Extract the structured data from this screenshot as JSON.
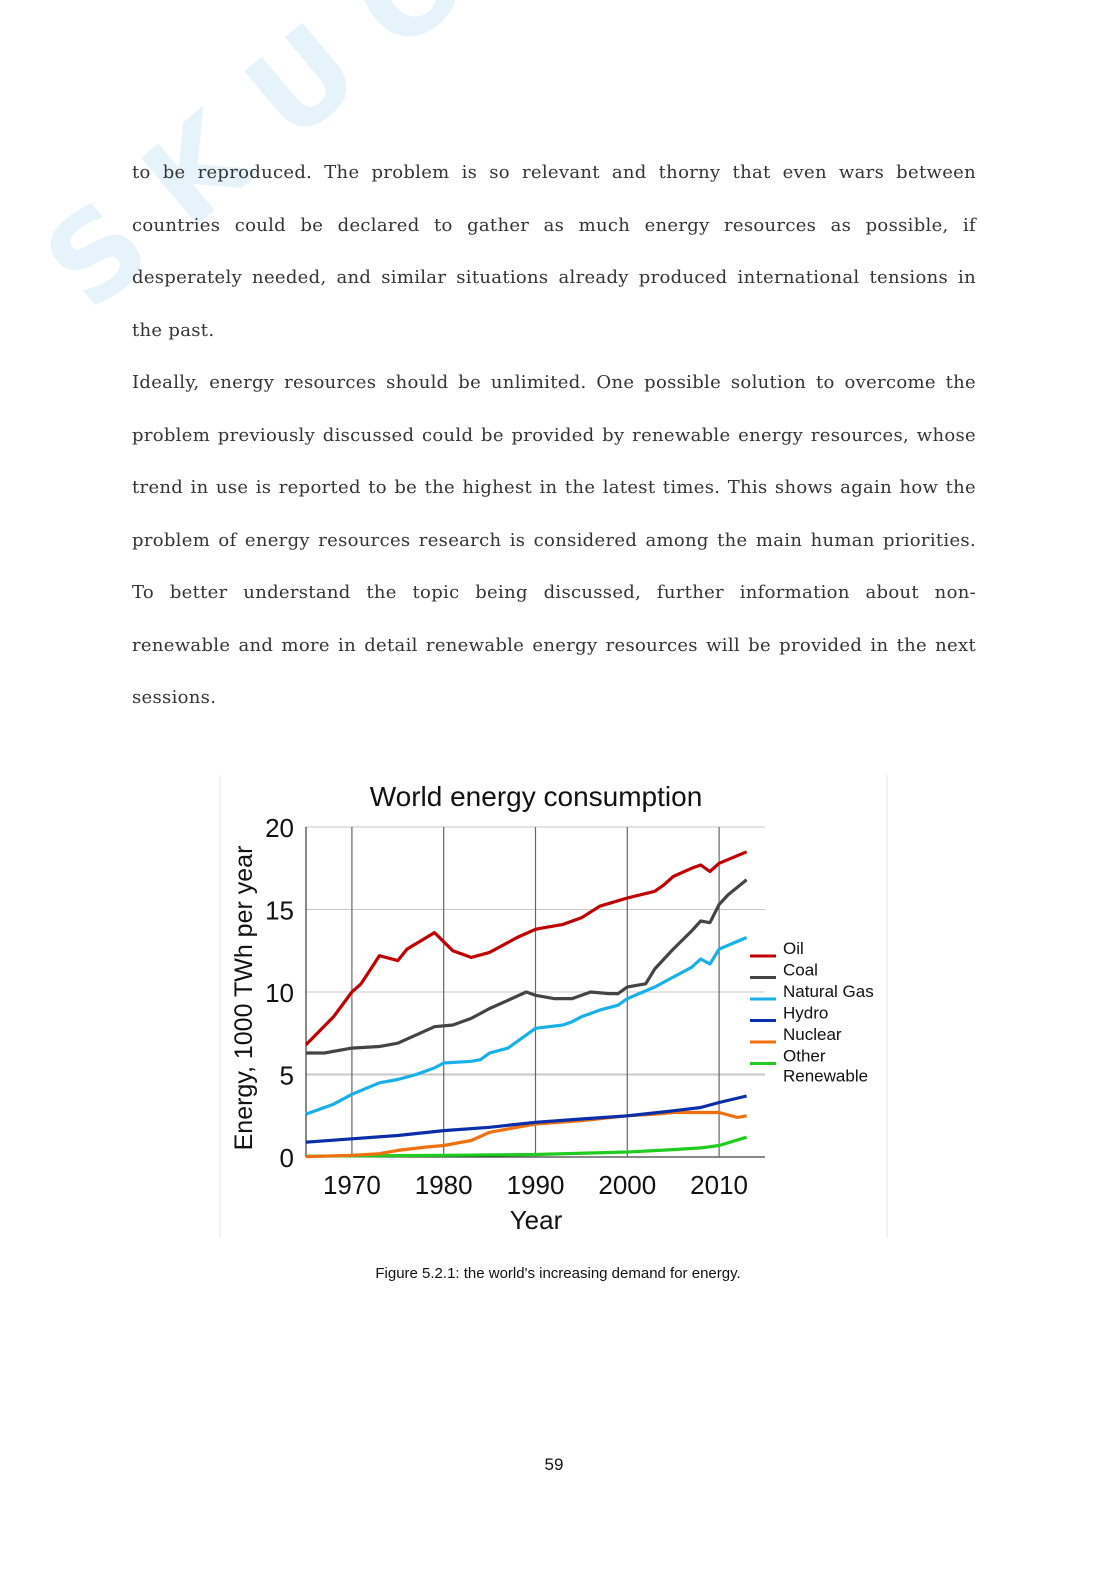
{
  "watermark": "Skuola.net",
  "paragraphs": [
    [
      "to be reproduced. The problem is so relevant and thorny that even wars between",
      "countries could be declared to gather as much energy resources as possible, if",
      "desperately needed, and similar situations already produced international tensions in",
      "the past."
    ],
    [
      "Ideally, energy resources should be unlimited. One possible solution to overcome the",
      "problem previously discussed could be provided by renewable energy resources, whose",
      "trend in use is reported to be the highest in the latest times. This shows again how the",
      "problem of energy resources research is considered among the main human priorities.",
      "To better understand the topic being discussed, further information about non-",
      "renewable and more in detail renewable energy resources will be provided in the next",
      "sessions."
    ]
  ],
  "caption": "Figure 5.2.1: the world's increasing demand for energy.",
  "page_number": "59",
  "chart_data": {
    "type": "line",
    "title": "World energy consumption",
    "xlabel": "Year",
    "ylabel": "Energy, 1000 TWh per year",
    "xlim": [
      1965,
      2015
    ],
    "ylim": [
      0,
      20
    ],
    "xticks": [
      "1970",
      "1980",
      "1990",
      "2000",
      "2010"
    ],
    "yticks": [
      "0",
      "5",
      "10",
      "15",
      "20"
    ],
    "grid": true,
    "legend": "right",
    "series": [
      {
        "name": "Oil",
        "color": "#c00000",
        "x": [
          1965,
          1968,
          1970,
          1971,
          1973,
          1975,
          1976,
          1979,
          1981,
          1983,
          1985,
          1988,
          1990,
          1991,
          1993,
          1995,
          1997,
          2000,
          2003,
          2004,
          2005,
          2007,
          2008,
          2009,
          2010,
          2013
        ],
        "y": [
          6.8,
          8.5,
          10.0,
          10.5,
          12.2,
          11.9,
          12.6,
          13.6,
          12.5,
          12.1,
          12.4,
          13.3,
          13.8,
          13.9,
          14.1,
          14.5,
          15.2,
          15.7,
          16.1,
          16.5,
          17.0,
          17.5,
          17.7,
          17.3,
          17.8,
          18.5
        ]
      },
      {
        "name": "Coal",
        "color": "#444444",
        "x": [
          1965,
          1967,
          1970,
          1973,
          1975,
          1977,
          1979,
          1981,
          1983,
          1985,
          1987,
          1989,
          1990,
          1992,
          1994,
          1996,
          1998,
          1999,
          2000,
          2002,
          2003,
          2005,
          2007,
          2008,
          2009,
          2010,
          2011,
          2013
        ],
        "y": [
          6.3,
          6.3,
          6.6,
          6.7,
          6.9,
          7.4,
          7.9,
          8.0,
          8.4,
          9.0,
          9.5,
          10.0,
          9.8,
          9.6,
          9.6,
          10.0,
          9.9,
          9.9,
          10.3,
          10.5,
          11.4,
          12.6,
          13.7,
          14.3,
          14.2,
          15.3,
          15.9,
          16.8
        ]
      },
      {
        "name": "Natural Gas",
        "color": "#19b0ea",
        "x": [
          1965,
          1968,
          1970,
          1973,
          1975,
          1977,
          1979,
          1980,
          1983,
          1984,
          1985,
          1987,
          1989,
          1990,
          1993,
          1994,
          1995,
          1997,
          1999,
          2000,
          2003,
          2005,
          2007,
          2008,
          2009,
          2010,
          2013
        ],
        "y": [
          2.6,
          3.2,
          3.8,
          4.5,
          4.7,
          5.0,
          5.4,
          5.7,
          5.8,
          5.9,
          6.3,
          6.6,
          7.4,
          7.8,
          8.0,
          8.2,
          8.5,
          8.9,
          9.2,
          9.6,
          10.3,
          10.9,
          11.5,
          12.0,
          11.7,
          12.6,
          13.3
        ]
      },
      {
        "name": "Hydro",
        "color": "#0a2daa",
        "x": [
          1965,
          1970,
          1975,
          1980,
          1985,
          1990,
          1995,
          2000,
          2005,
          2008,
          2010,
          2013
        ],
        "y": [
          0.9,
          1.1,
          1.3,
          1.6,
          1.8,
          2.1,
          2.3,
          2.5,
          2.8,
          3.0,
          3.3,
          3.7
        ]
      },
      {
        "name": "Nuclear",
        "color": "#f07010",
        "x": [
          1965,
          1970,
          1973,
          1975,
          1978,
          1980,
          1983,
          1985,
          1988,
          1990,
          1995,
          2000,
          2003,
          2005,
          2008,
          2010,
          2012,
          2013
        ],
        "y": [
          0.02,
          0.1,
          0.2,
          0.4,
          0.6,
          0.7,
          1.0,
          1.5,
          1.8,
          2.0,
          2.2,
          2.5,
          2.6,
          2.7,
          2.7,
          2.7,
          2.4,
          2.5
        ]
      },
      {
        "name": "Other Renewable",
        "color": "#20cc20",
        "x": [
          1965,
          1980,
          1990,
          2000,
          2005,
          2008,
          2010,
          2013
        ],
        "y": [
          0.05,
          0.1,
          0.15,
          0.3,
          0.45,
          0.55,
          0.7,
          1.2
        ]
      }
    ]
  }
}
